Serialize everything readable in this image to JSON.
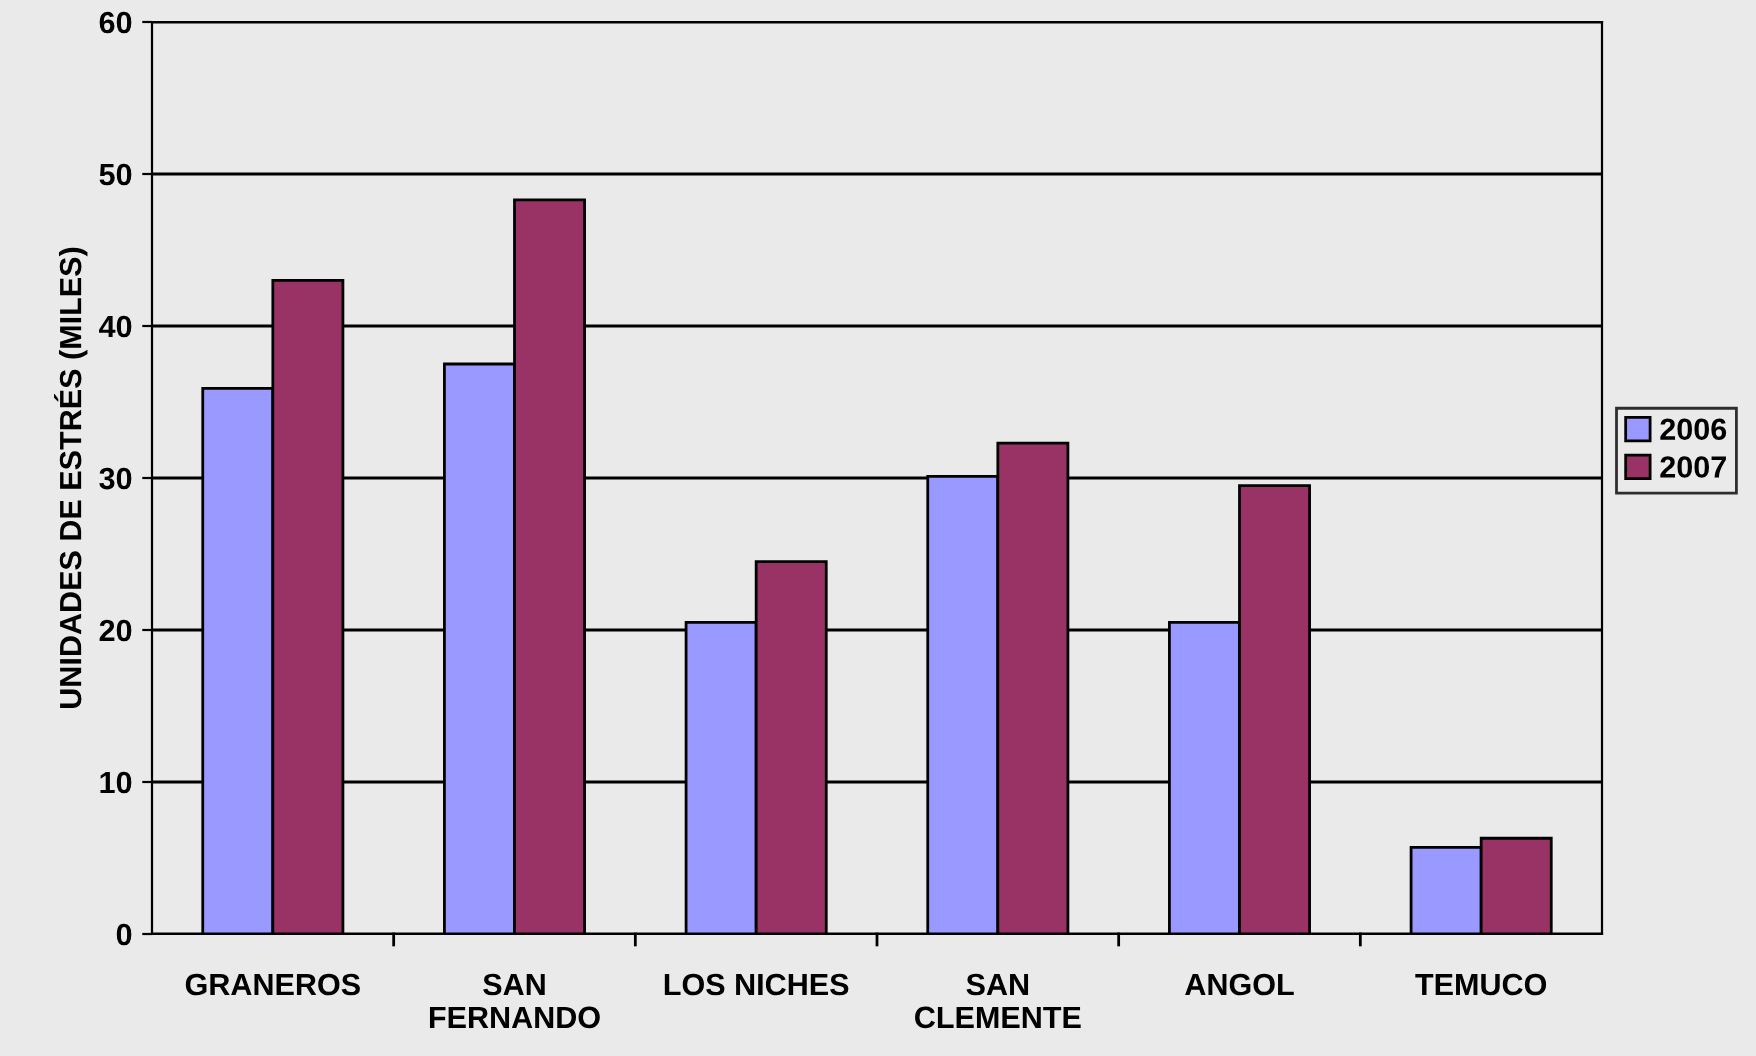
{
  "chart_data": {
    "type": "bar",
    "ylabel": "UNIDADES DE ESTRÉS (MILES)",
    "categories": [
      "GRANEROS",
      "SAN\nFERNANDO",
      "LOS NICHES",
      "SAN\nCLEMENTE",
      "ANGOL",
      "TEMUCO"
    ],
    "series": [
      {
        "name": "2006",
        "color": "#9999ff",
        "values": [
          35.9,
          37.5,
          20.5,
          30.1,
          20.5,
          5.7
        ]
      },
      {
        "name": "2007",
        "color": "#993366",
        "values": [
          43.0,
          48.3,
          24.5,
          32.3,
          29.5,
          6.3
        ]
      }
    ],
    "ylim": [
      0,
      60
    ],
    "yticks": [
      0,
      10,
      20,
      30,
      40,
      50,
      60
    ],
    "grid": "y",
    "legend": "right"
  }
}
